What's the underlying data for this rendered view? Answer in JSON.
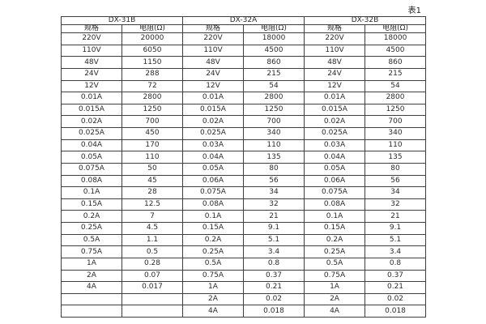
{
  "caption": "表1",
  "colors": {
    "background": "#ffffff",
    "border": "#3f3f3f",
    "text": "#2b2b2b"
  },
  "table": {
    "groups": [
      {
        "name": "DX-31B",
        "col_headers": [
          "规格",
          "电阻(Ω)"
        ],
        "rows": [
          [
            "220V",
            "20000"
          ],
          [
            "110V",
            "6050"
          ],
          [
            "48V",
            "1150"
          ],
          [
            "24V",
            "288"
          ],
          [
            "12V",
            "72"
          ],
          [
            "0.01A",
            "2800"
          ],
          [
            "0.015A",
            "1250"
          ],
          [
            "0.02A",
            "700"
          ],
          [
            "0.025A",
            "450"
          ],
          [
            "0.04A",
            "170"
          ],
          [
            "0.05A",
            "110"
          ],
          [
            "0.075A",
            "50"
          ],
          [
            "0.08A",
            "45"
          ],
          [
            "0.1A",
            "28"
          ],
          [
            "0.15A",
            "12.5"
          ],
          [
            "0.2A",
            "7"
          ],
          [
            "0.25A",
            "4.5"
          ],
          [
            "0.5A",
            "1.1"
          ],
          [
            "0.75A",
            "0.5"
          ],
          [
            "1A",
            "0.28"
          ],
          [
            "2A",
            "0.07"
          ],
          [
            "4A",
            "0.017"
          ],
          [
            "",
            ""
          ],
          [
            "",
            ""
          ]
        ]
      },
      {
        "name": "DX-32A",
        "col_headers": [
          "规格",
          "电阻(Ω)"
        ],
        "rows": [
          [
            "220V",
            "18000"
          ],
          [
            "110V",
            "4500"
          ],
          [
            "48V",
            "860"
          ],
          [
            "24V",
            "215"
          ],
          [
            "12V",
            "54"
          ],
          [
            "0.01A",
            "2800"
          ],
          [
            "0.015A",
            "1250"
          ],
          [
            "0.02A",
            "700"
          ],
          [
            "0.025A",
            "340"
          ],
          [
            "0.03A",
            "110"
          ],
          [
            "0.04A",
            "135"
          ],
          [
            "0.05A",
            "80"
          ],
          [
            "0.06A",
            "56"
          ],
          [
            "0.075A",
            "34"
          ],
          [
            "0.08A",
            "32"
          ],
          [
            "0.1A",
            "21"
          ],
          [
            "0.15A",
            "9.1"
          ],
          [
            "0.2A",
            "5.1"
          ],
          [
            "0.25A",
            "3.4"
          ],
          [
            "0.5A",
            "0.8"
          ],
          [
            "0.75A",
            "0.37"
          ],
          [
            "1A",
            "0.21"
          ],
          [
            "2A",
            "0.02"
          ],
          [
            "4A",
            "0.018"
          ]
        ]
      },
      {
        "name": "DX-32B",
        "col_headers": [
          "规格",
          "电阻(Ω)"
        ],
        "rows": [
          [
            "220V",
            "18000"
          ],
          [
            "110V",
            "4500"
          ],
          [
            "48V",
            "860"
          ],
          [
            "24V",
            "215"
          ],
          [
            "12V",
            "54"
          ],
          [
            "0.01A",
            "2800"
          ],
          [
            "0.015A",
            "1250"
          ],
          [
            "0.02A",
            "700"
          ],
          [
            "0.025A",
            "340"
          ],
          [
            "0.03A",
            "110"
          ],
          [
            "0.04A",
            "135"
          ],
          [
            "0.05A",
            "80"
          ],
          [
            "0.06A",
            "56"
          ],
          [
            "0.075A",
            "34"
          ],
          [
            "0.08A",
            "32"
          ],
          [
            "0.1A",
            "21"
          ],
          [
            "0.15A",
            "9.1"
          ],
          [
            "0.2A",
            "5.1"
          ],
          [
            "0.25A",
            "3.4"
          ],
          [
            "0.5A",
            "0.8"
          ],
          [
            "0.75A",
            "0.37"
          ],
          [
            "1A",
            "0.21"
          ],
          [
            "2A",
            "0.02"
          ],
          [
            "4A",
            "0.018"
          ]
        ]
      }
    ]
  }
}
